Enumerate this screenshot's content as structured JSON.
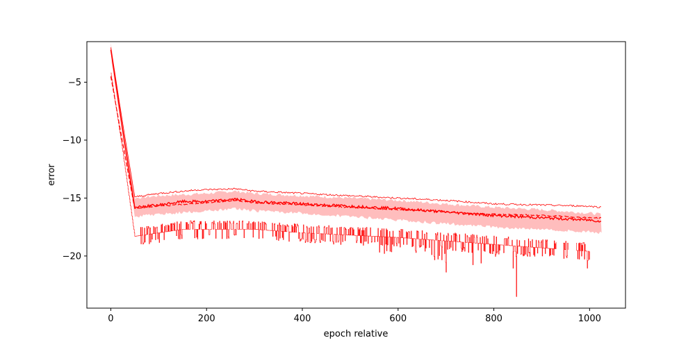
{
  "chart_data": {
    "type": "line",
    "title": "",
    "xlabel": "epoch relative",
    "ylabel": "error",
    "xlim": [
      -50,
      1075
    ],
    "ylim": [
      -24.5,
      -1.5
    ],
    "xticks": [
      0,
      200,
      400,
      600,
      800,
      1000
    ],
    "yticks": [
      -5,
      -10,
      -15,
      -20
    ],
    "xtick_labels": [
      "0",
      "200",
      "400",
      "600",
      "800",
      "1000"
    ],
    "ytick_labels": [
      "−5",
      "−10",
      "−15",
      "−20"
    ],
    "grid": false,
    "legend": "none",
    "colors": {
      "line": "#ff0000",
      "band": "#ffbdbd",
      "axes": "#000000"
    },
    "series": [
      {
        "style": "solid",
        "x": [
          0,
          25,
          50,
          100,
          150,
          200,
          260,
          300,
          400,
          500,
          600,
          700,
          800,
          900,
          1000,
          1025
        ],
        "y": [
          -2.2,
          -9.2,
          -15.8,
          -15.6,
          -15.3,
          -15.3,
          -15.1,
          -15.3,
          -15.5,
          -15.7,
          -15.9,
          -16.2,
          -16.5,
          -16.7,
          -16.9,
          -17.0
        ]
      },
      {
        "style": "dashed",
        "x": [
          0,
          25,
          50,
          100,
          200,
          260,
          300,
          400,
          500,
          600,
          700,
          800,
          900,
          1000,
          1025
        ],
        "y": [
          -4.5,
          -10.3,
          -15.9,
          -15.7,
          -15.4,
          -15.2,
          -15.4,
          -15.6,
          -15.8,
          -16.0,
          -16.2,
          -16.4,
          -16.5,
          -16.7,
          -16.7
        ]
      },
      {
        "style": "band-upper",
        "x": [
          0,
          25,
          50,
          100,
          200,
          260,
          300,
          400,
          500,
          600,
          700,
          800,
          900,
          1000,
          1025
        ],
        "y": [
          -1.6,
          -8.5,
          -15.0,
          -14.8,
          -14.6,
          -14.4,
          -14.6,
          -14.8,
          -15.0,
          -15.2,
          -15.5,
          -15.8,
          -16.0,
          -16.3,
          -16.4
        ]
      },
      {
        "style": "band-lower",
        "x": [
          0,
          25,
          50,
          100,
          200,
          260,
          300,
          400,
          500,
          600,
          700,
          800,
          900,
          1000,
          1025
        ],
        "y": [
          -2.8,
          -9.9,
          -16.6,
          -16.4,
          -16.1,
          -15.9,
          -16.1,
          -16.3,
          -16.6,
          -16.9,
          -17.2,
          -17.5,
          -17.7,
          -17.9,
          -18.0
        ]
      },
      {
        "style": "thin-upper",
        "x": [
          0,
          25,
          50,
          100,
          180,
          260,
          300,
          400,
          500,
          600,
          700,
          800,
          900,
          1000,
          1025
        ],
        "y": [
          -2.0,
          -8.6,
          -14.9,
          -14.6,
          -14.3,
          -14.2,
          -14.4,
          -14.6,
          -14.8,
          -15.0,
          -15.2,
          -15.5,
          -15.6,
          -15.7,
          -15.8
        ]
      },
      {
        "style": "floor-noise",
        "x": [
          0,
          25,
          50,
          100,
          150,
          200,
          300,
          400,
          500,
          600,
          700,
          800,
          900,
          1000
        ],
        "y": [
          -4.2,
          -11.0,
          -18.3,
          -18.0,
          -17.7,
          -17.7,
          -17.7,
          -18.0,
          -18.2,
          -18.4,
          -18.7,
          -19.0,
          -19.3,
          -19.6
        ]
      }
    ],
    "notable_minima": [
      {
        "x": 700,
        "y": -21.4
      },
      {
        "x": 847,
        "y": -23.5
      },
      {
        "x": 940,
        "y": -21.4
      },
      {
        "x": 965,
        "y": -21.4
      }
    ]
  }
}
